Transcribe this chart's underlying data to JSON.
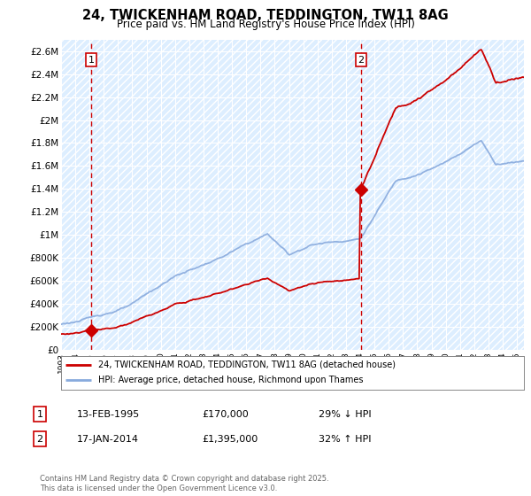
{
  "title": "24, TWICKENHAM ROAD, TEDDINGTON, TW11 8AG",
  "subtitle": "Price paid vs. HM Land Registry's House Price Index (HPI)",
  "legend_line1": "24, TWICKENHAM ROAD, TEDDINGTON, TW11 8AG (detached house)",
  "legend_line2": "HPI: Average price, detached house, Richmond upon Thames",
  "footnote": "Contains HM Land Registry data © Crown copyright and database right 2025.\nThis data is licensed under the Open Government Licence v3.0.",
  "transaction1_label": "1",
  "transaction1_date": "13-FEB-1995",
  "transaction1_price": "£170,000",
  "transaction1_hpi": "29% ↓ HPI",
  "transaction2_label": "2",
  "transaction2_date": "17-JAN-2014",
  "transaction2_price": "£1,395,000",
  "transaction2_hpi": "32% ↑ HPI",
  "ylim": [
    0,
    2700000
  ],
  "yticks": [
    0,
    200000,
    400000,
    600000,
    800000,
    1000000,
    1200000,
    1400000,
    1600000,
    1800000,
    2000000,
    2200000,
    2400000,
    2600000
  ],
  "ytick_labels": [
    "£0",
    "£200K",
    "£400K",
    "£600K",
    "£800K",
    "£1M",
    "£1.2M",
    "£1.4M",
    "£1.6M",
    "£1.8M",
    "£2M",
    "£2.2M",
    "£2.4M",
    "£2.6M"
  ],
  "sale_color": "#cc0000",
  "hpi_color": "#88aadd",
  "vline_color": "#cc0000",
  "background_color": "#ddeeff",
  "grid_color": "#ffffff",
  "hatch_color": "#c8d8e8",
  "marker1_x": 1995.12,
  "marker1_y": 170000,
  "marker2_x": 2014.05,
  "marker2_y": 1395000,
  "vline1_x": 1995.12,
  "vline2_x": 2014.05,
  "sale_marker_size": 7,
  "xlim_left": 1993.0,
  "xlim_right": 2025.5
}
